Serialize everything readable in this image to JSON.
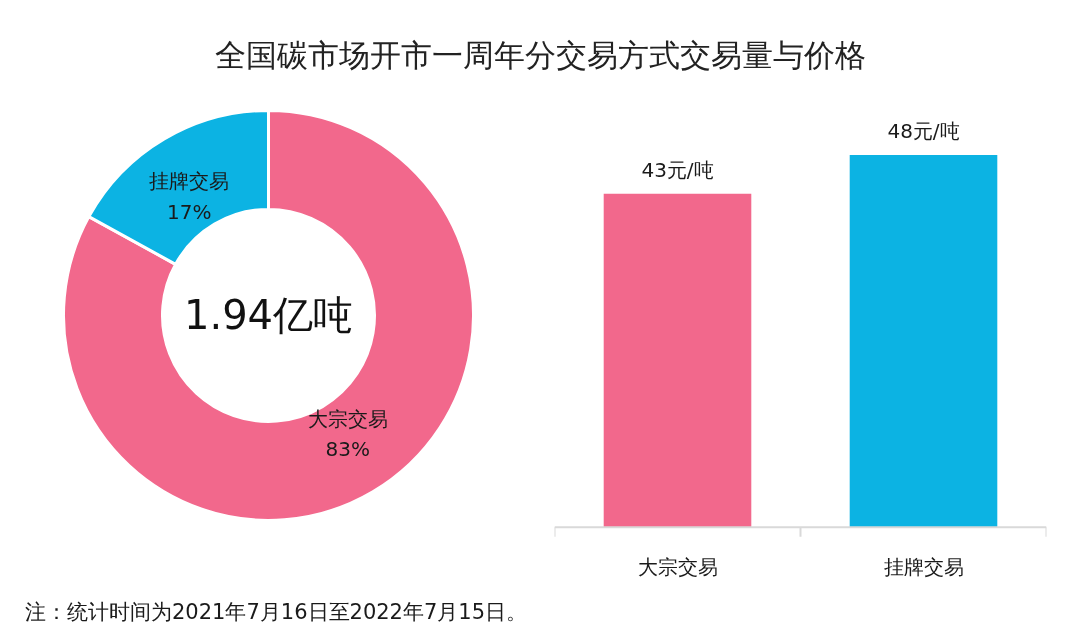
{
  "chart_data": [
    {
      "type": "donut",
      "title": "全国碳市场开市一周年分交易方式交易量与价格",
      "categories": [
        "大宗交易",
        "挂牌交易"
      ],
      "values": [
        83,
        17
      ],
      "colors": [
        "#f2688c",
        "#0cb3e3"
      ],
      "value_labels": [
        "83%",
        "17%"
      ],
      "annotations": [
        "1.94亿吨",
        "注：统计时间为2021年7月16日至2022年7月15日。"
      ]
    },
    {
      "type": "bar",
      "categories": [
        "大宗交易",
        "挂牌交易"
      ],
      "values": [
        43,
        48
      ],
      "colors": [
        "#f2688c",
        "#0cb3e3"
      ],
      "value_labels": [
        "43元/吨",
        "48元/吨"
      ]
    }
  ]
}
